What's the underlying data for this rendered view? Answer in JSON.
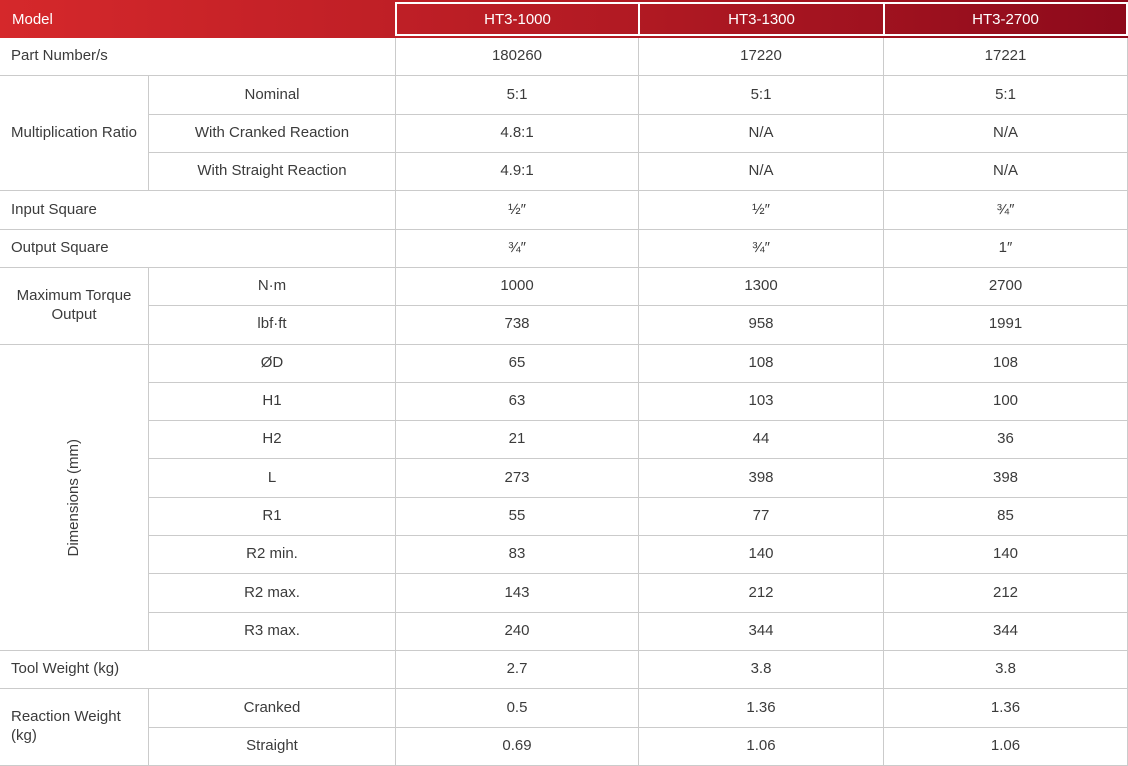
{
  "colors": {
    "header_gradient_left": "#d5282b",
    "header_gradient_right": "#8d0a1b",
    "header_text": "#ffffff",
    "body_text": "#3b3b3b",
    "grid_line": "#cbcbcb"
  },
  "spec": {
    "header": {
      "label": "Model",
      "columns": [
        "HT3-1000",
        "HT3-1300",
        "HT3-2700"
      ]
    },
    "part_number": {
      "label": "Part Number/s",
      "values": [
        "180260",
        "17220",
        "17221"
      ]
    },
    "multiplication_ratio": {
      "label": "Multiplication Ratio",
      "rows": [
        {
          "label": "Nominal",
          "values": [
            "5:1",
            "5:1",
            "5:1"
          ]
        },
        {
          "label": "With Cranked Reaction",
          "values": [
            "4.8:1",
            "N/A",
            "N/A"
          ]
        },
        {
          "label": "With Straight Reaction",
          "values": [
            "4.9:1",
            "N/A",
            "N/A"
          ]
        }
      ]
    },
    "input_square": {
      "label": "Input Square",
      "values": [
        "½″",
        "½″",
        "¾″"
      ]
    },
    "output_square": {
      "label": "Output Square",
      "values": [
        "¾″",
        "¾″",
        "1″"
      ]
    },
    "maximum_torque_output": {
      "label": "Maximum Torque Output",
      "rows": [
        {
          "label": "N·m",
          "values": [
            "1000",
            "1300",
            "2700"
          ]
        },
        {
          "label": "lbf·ft",
          "values": [
            "738",
            "958",
            "1991"
          ]
        }
      ]
    },
    "dimensions_mm": {
      "label": "Dimensions (mm)",
      "rows": [
        {
          "label": "ØD",
          "values": [
            "65",
            "108",
            "108"
          ]
        },
        {
          "label": "H1",
          "values": [
            "63",
            "103",
            "100"
          ]
        },
        {
          "label": "H2",
          "values": [
            "21",
            "44",
            "36"
          ]
        },
        {
          "label": "L",
          "values": [
            "273",
            "398",
            "398"
          ]
        },
        {
          "label": "R1",
          "values": [
            "55",
            "77",
            "85"
          ]
        },
        {
          "label": "R2 min.",
          "values": [
            "83",
            "140",
            "140"
          ]
        },
        {
          "label": "R2 max.",
          "values": [
            "143",
            "212",
            "212"
          ]
        },
        {
          "label": "R3 max.",
          "values": [
            "240",
            "344",
            "344"
          ]
        }
      ]
    },
    "tool_weight": {
      "label": "Tool Weight (kg)",
      "values": [
        "2.7",
        "3.8",
        "3.8"
      ]
    },
    "reaction_weight": {
      "label": "Reaction Weight (kg)",
      "rows": [
        {
          "label": "Cranked",
          "values": [
            "0.5",
            "1.36",
            "1.36"
          ]
        },
        {
          "label": "Straight",
          "values": [
            "0.69",
            "1.06",
            "1.06"
          ]
        }
      ]
    }
  }
}
